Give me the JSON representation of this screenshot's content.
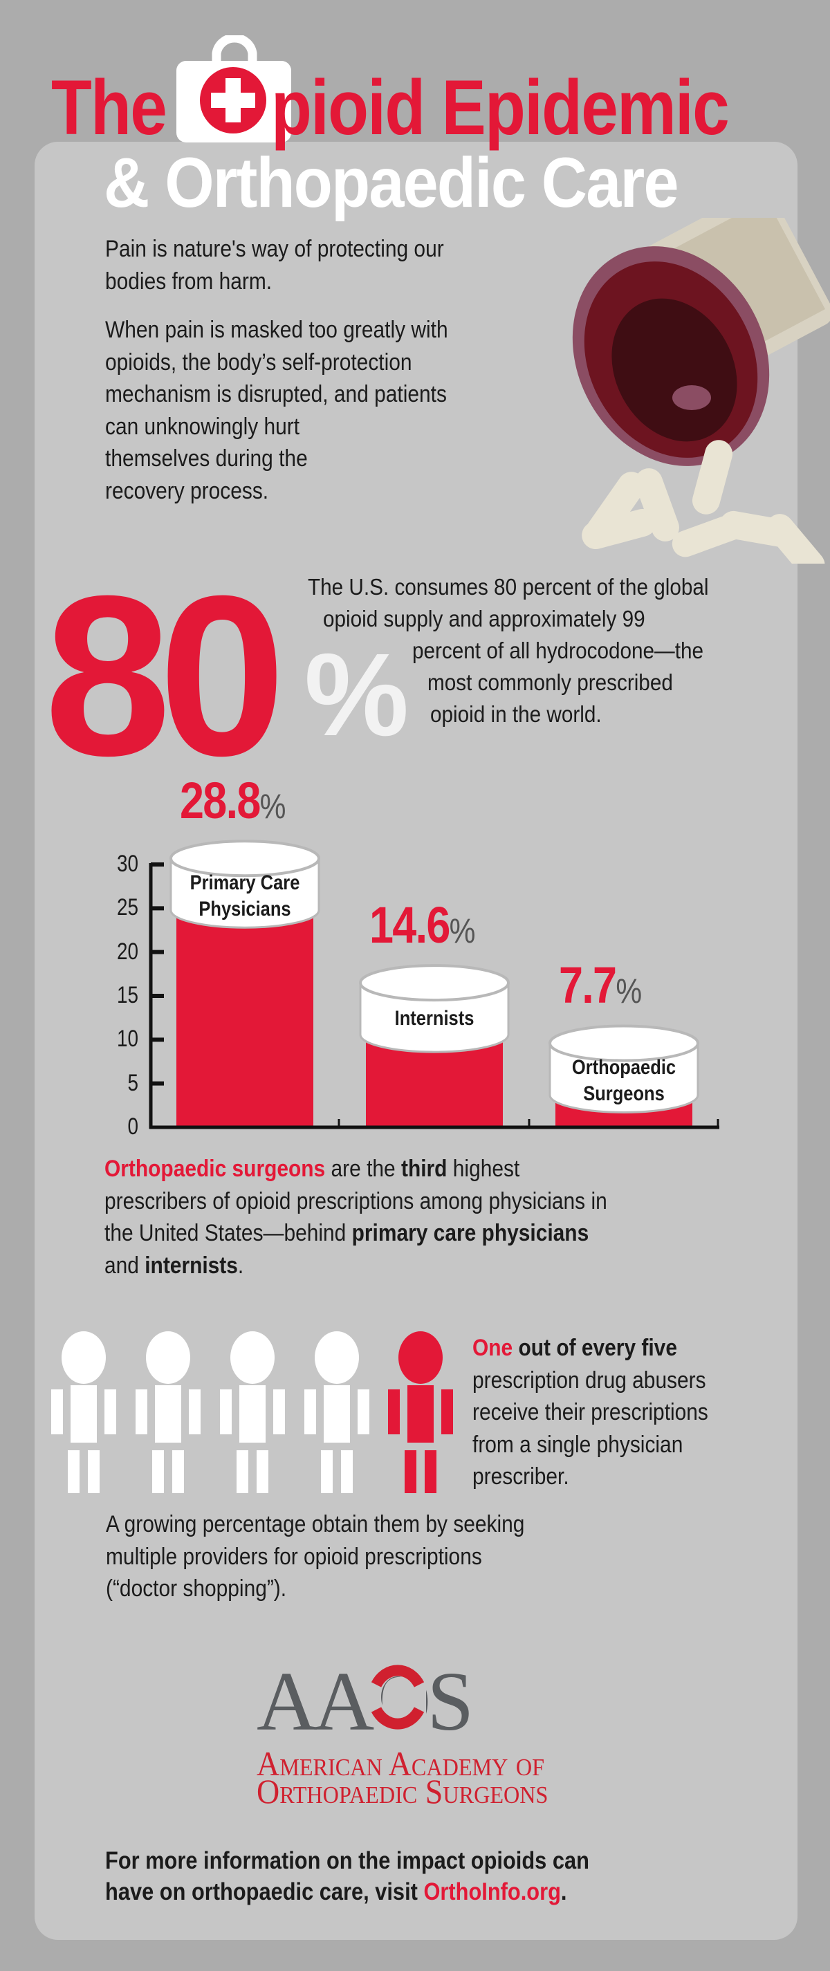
{
  "colors": {
    "brand_red": "#e31837",
    "background": "#acacac",
    "panel": "#c6c6c6",
    "logo_gray": "#5a5d60"
  },
  "header": {
    "title_before": "The",
    "title_after": "pioid Epidemic",
    "title_icon": "medical-bag-cross-icon",
    "subtitle": "& Orthopaedic Care"
  },
  "intro": {
    "para1_lines": [
      "Pain is nature's way of protecting our",
      "bodies from harm."
    ],
    "para2_lines": [
      "When pain is masked too greatly with",
      "opioids, the body’s self-protection",
      "mechanism is disrupted, and patients",
      "can unknowingly hurt",
      "themselves during the",
      "recovery process."
    ],
    "illustration": "spilled-pill-bottle"
  },
  "stat80": {
    "number": "80",
    "percent_sign": "%",
    "lines": [
      "The U.S. consumes 80 percent of the global",
      "opioid supply and approximately 99",
      "percent of all hydrocodone—the",
      "most commonly prescribed",
      "opioid in the world."
    ]
  },
  "chart_data": {
    "type": "bar",
    "categories": [
      "Primary Care Physicians",
      "Internists",
      "Orthopaedic Surgeons"
    ],
    "category_lines": [
      [
        "Primary Care",
        "Physicians"
      ],
      [
        "Internists"
      ],
      [
        "Orthopaedic",
        "Surgeons"
      ]
    ],
    "values": [
      28.8,
      14.6,
      7.7
    ],
    "value_labels": [
      "28.8",
      "14.6",
      "7.7"
    ],
    "value_suffix": "%",
    "ylim": [
      0,
      30
    ],
    "yticks": [
      "0",
      "5",
      "10",
      "15",
      "20",
      "25",
      "30"
    ],
    "grid": false,
    "bar_color": "#e31837"
  },
  "chart_caption": {
    "line1": {
      "a": "Orthopaedic surgeons",
      "b": " are the ",
      "c": "third",
      "d": " highest"
    },
    "line2": "prescribers of opioid prescriptions among physicians in",
    "line3": {
      "a": "the United States—behind ",
      "b": "primary care physicians"
    },
    "line4": {
      "a": "and ",
      "b": "internists",
      "c": "."
    }
  },
  "one_in_five": {
    "figures_total": 5,
    "figures_highlighted": 1,
    "line1": {
      "a": "One",
      "b": " out of every five"
    },
    "lines": [
      "prescription drug abusers",
      "receive their prescriptions",
      "from a single physician",
      "prescriber."
    ],
    "followup_lines": [
      "A growing percentage obtain them by seeking",
      "multiple providers for opioid prescriptions",
      "(“doctor shopping”)."
    ]
  },
  "logo": {
    "acronym": "AAOS",
    "name_line1": "American Academy of",
    "name_line2": "Orthopaedic Surgeons"
  },
  "footer": {
    "line1": "For more information on the impact opioids can",
    "line2_prefix": "have on orthopaedic care, visit ",
    "link": "OrthoInfo.org",
    "line2_suffix": "."
  }
}
